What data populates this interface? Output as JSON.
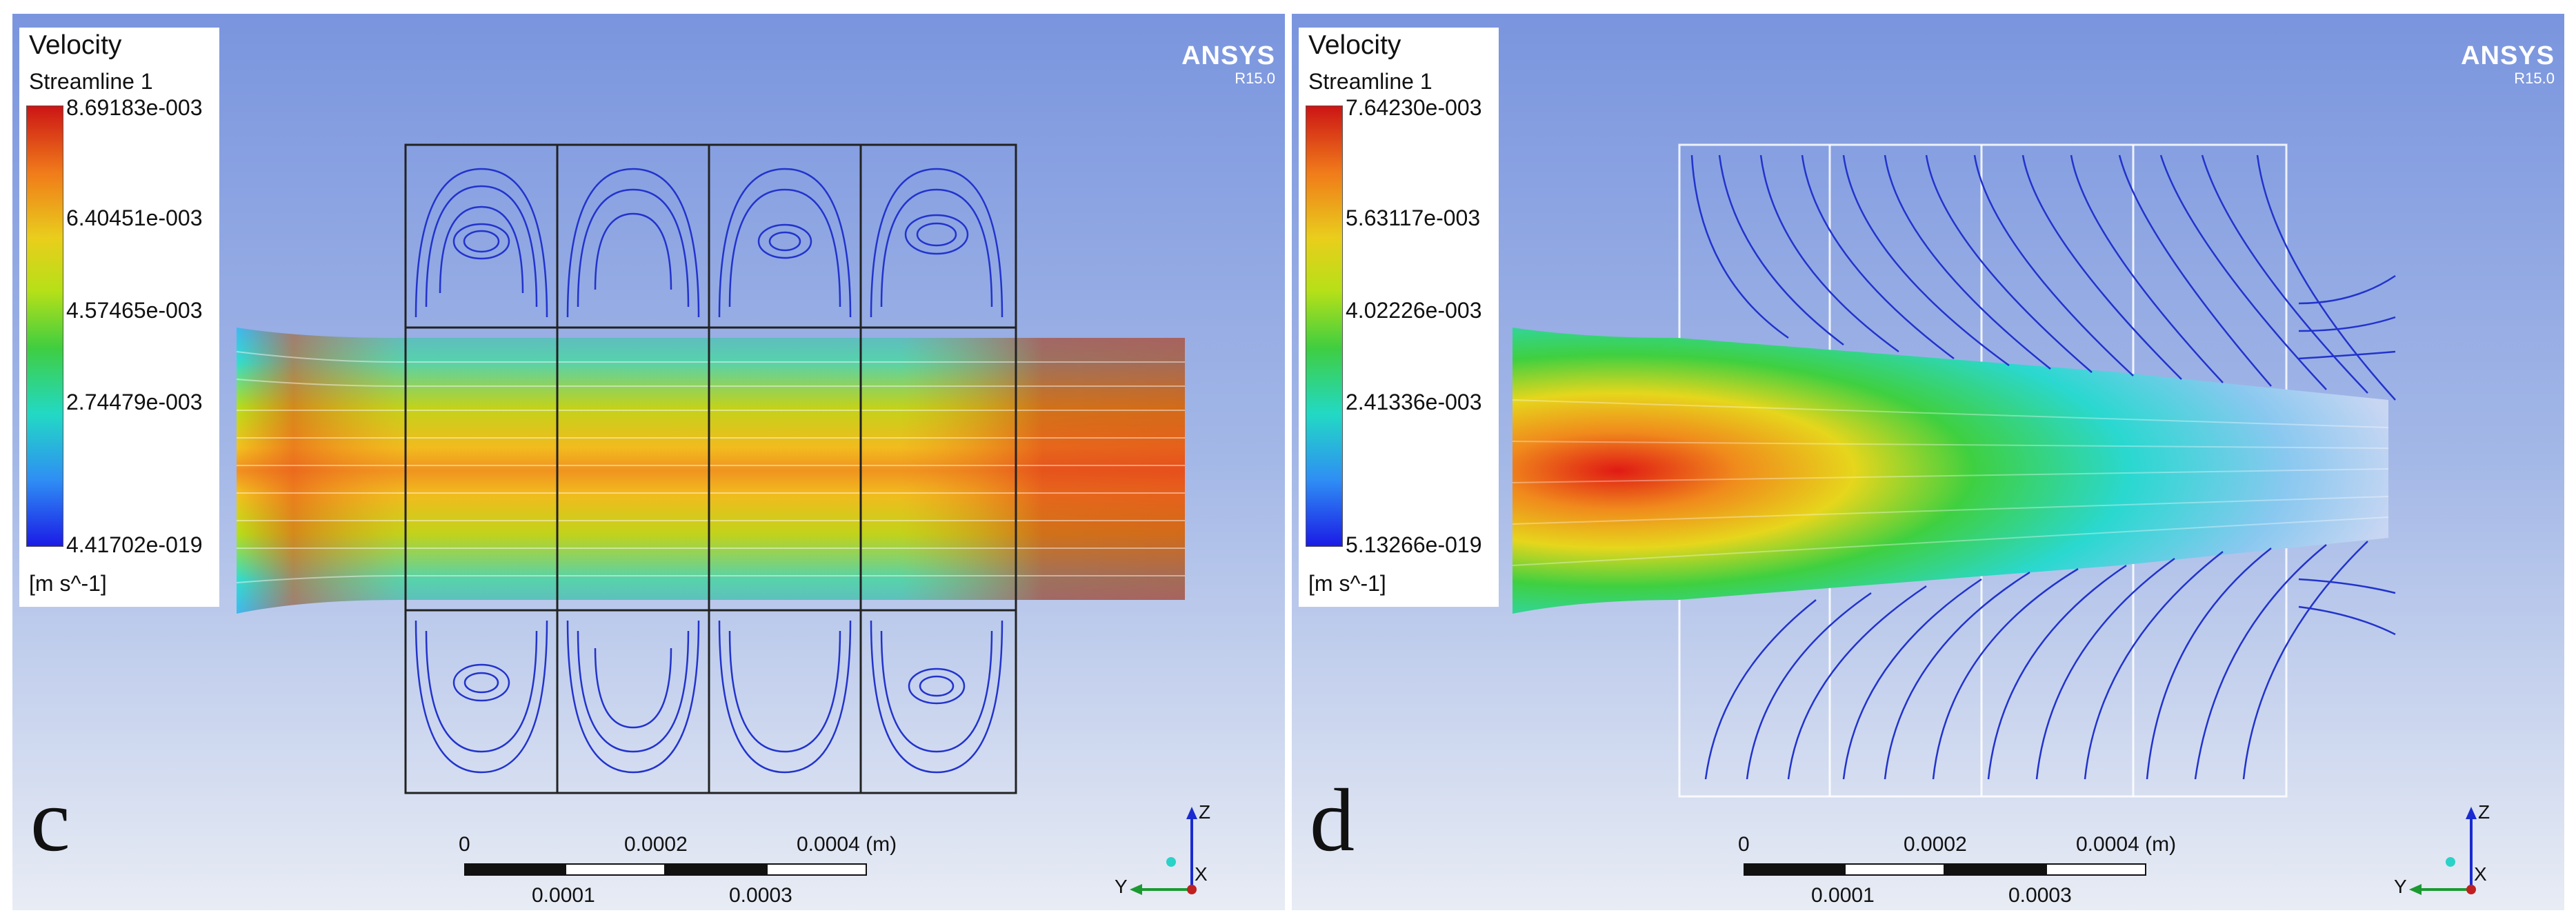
{
  "panels": [
    {
      "label": "c",
      "legend": {
        "title": "Velocity",
        "subtitle": "Streamline 1",
        "ticks": [
          "8.69183e-003",
          "6.40451e-003",
          "4.57465e-003",
          "2.74479e-003",
          "4.41702e-019"
        ],
        "unit": "[m s^-1]"
      },
      "logo": {
        "name": "ANSYS",
        "version": "R15.0"
      },
      "scalebar": {
        "top": [
          "0",
          "0.0002",
          "0.0004 (m)"
        ],
        "bottom": [
          "0.0001",
          "0.0003"
        ]
      },
      "axes": {
        "z": "Z",
        "y": "Y",
        "x": "X"
      }
    },
    {
      "label": "d",
      "legend": {
        "title": "Velocity",
        "subtitle": "Streamline 1",
        "ticks": [
          "7.64230e-003",
          "5.63117e-003",
          "4.02226e-003",
          "2.41336e-003",
          "5.13266e-019"
        ],
        "unit": "[m s^-1]"
      },
      "logo": {
        "name": "ANSYS",
        "version": "R15.0"
      },
      "scalebar": {
        "top": [
          "0",
          "0.0002",
          "0.0004 (m)"
        ],
        "bottom": [
          "0.0001",
          "0.0003"
        ]
      },
      "axes": {
        "z": "Z",
        "y": "Y",
        "x": "X"
      }
    }
  ],
  "colors": {
    "max": "#cc1515",
    "mid": "#e9ce1c",
    "low": "#22d9c4",
    "min": "#1b1be6",
    "background_top": "#7a95de"
  }
}
